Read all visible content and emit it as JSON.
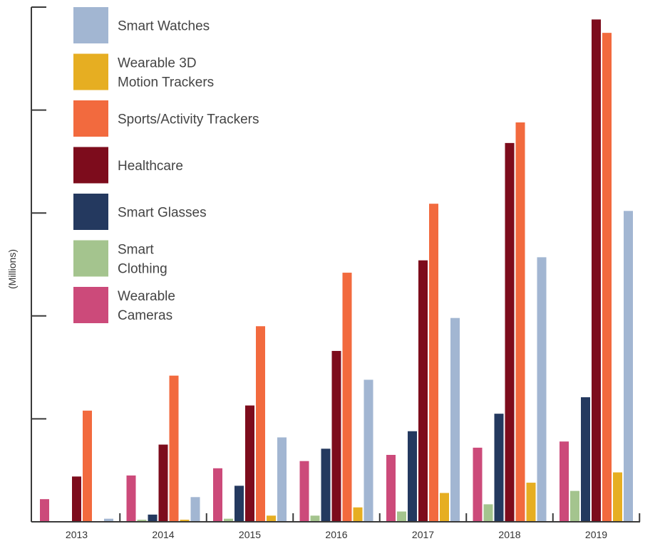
{
  "chart_data": {
    "type": "bar",
    "title": "",
    "xlabel": "",
    "ylabel": "(Millions)",
    "ylim": [
      0,
      500
    ],
    "grid": false,
    "legend_position": "top-left",
    "categories": [
      "2013",
      "2014",
      "2015",
      "2016",
      "2017",
      "2018",
      "2019"
    ],
    "series": [
      {
        "name": "Wearable Cameras",
        "color": "#cc4a7a",
        "values": [
          22,
          45,
          52,
          59,
          65,
          72,
          78
        ]
      },
      {
        "name": "Smart Clothing",
        "color": "#a4c48e",
        "values": [
          0,
          2,
          3,
          6,
          10,
          17,
          30
        ]
      },
      {
        "name": "Smart Glasses",
        "color": "#24395f",
        "values": [
          0,
          7,
          35,
          71,
          88,
          105,
          121
        ]
      },
      {
        "name": "Healthcare",
        "color": "#7d0c1c",
        "values": [
          44,
          75,
          113,
          166,
          254,
          368,
          488
        ]
      },
      {
        "name": "Sports/Activity Trackers",
        "color": "#f26a3e",
        "values": [
          108,
          142,
          190,
          242,
          309,
          388,
          475
        ]
      },
      {
        "name": "Wearable 3D Motion Trackers",
        "color": "#e6ae22",
        "values": [
          0,
          2,
          6,
          14,
          28,
          38,
          48
        ]
      },
      {
        "name": "Smart Watches",
        "color": "#a2b6d2",
        "values": [
          3,
          24,
          82,
          138,
          198,
          257,
          302
        ]
      }
    ],
    "legend": [
      {
        "lines": [
          "Smart Watches"
        ],
        "color": "#a2b6d2"
      },
      {
        "lines": [
          "Wearable 3D",
          "Motion Trackers"
        ],
        "color": "#e6ae22"
      },
      {
        "lines": [
          "Sports/Activity Trackers"
        ],
        "color": "#f26a3e"
      },
      {
        "lines": [
          "Healthcare"
        ],
        "color": "#7d0c1c"
      },
      {
        "lines": [
          "Smart Glasses"
        ],
        "color": "#24395f"
      },
      {
        "lines": [
          "Smart",
          "Clothing"
        ],
        "color": "#a4c48e"
      },
      {
        "lines": [
          "Wearable",
          "Cameras"
        ],
        "color": "#cc4a7a"
      }
    ]
  }
}
